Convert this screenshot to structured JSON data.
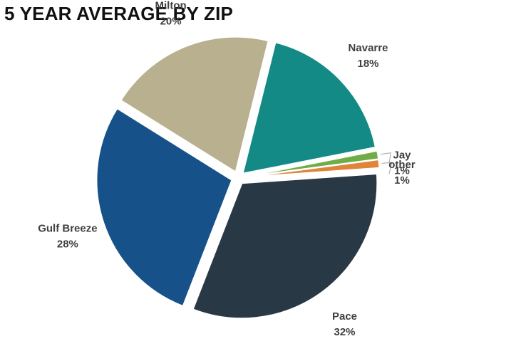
{
  "chart_data": {
    "type": "pie",
    "title": "5 YEAR AVERAGE BY ZIP",
    "slices": [
      {
        "name": "Navarre",
        "value": 18,
        "label": "18%",
        "color": "#138a86"
      },
      {
        "name": "Jay",
        "value": 1,
        "label": "1%",
        "color": "#70ad47"
      },
      {
        "name": "other",
        "value": 1,
        "label": "1%",
        "color": "#e0843a"
      },
      {
        "name": "Pace",
        "value": 32,
        "label": "32%",
        "color": "#293845"
      },
      {
        "name": "Gulf Breeze",
        "value": 28,
        "label": "28%",
        "color": "#165289"
      },
      {
        "name": "Milton",
        "value": 20,
        "label": "20%",
        "color": "#b8b08e"
      }
    ],
    "legend": "none",
    "data_labels": "outside"
  }
}
